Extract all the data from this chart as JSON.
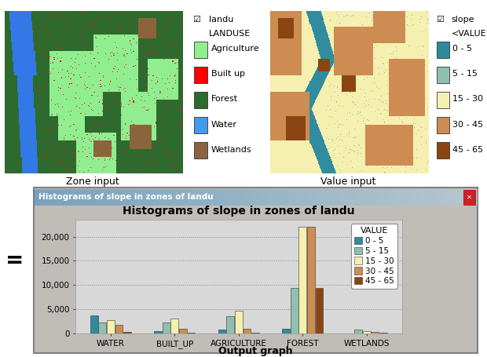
{
  "title": "Histograms of slope in zones of landu",
  "window_title": "Histograms of slope in zones of landu",
  "categories": [
    "WATER",
    "BUILT_UP",
    "AGRICULTURE",
    "FOREST",
    "WETLANDS"
  ],
  "value_labels": [
    "0 - 5",
    "5 - 15",
    "15 - 30",
    "30 - 45",
    "45 - 65"
  ],
  "bar_colors": [
    "#2e8b9a",
    "#8fbfb0",
    "#f5f0b0",
    "#cd8c52",
    "#8b4513"
  ],
  "data": {
    "WATER": [
      3800,
      2400,
      2800,
      1800,
      350
    ],
    "BUILT_UP": [
      550,
      2300,
      3100,
      1000,
      150
    ],
    "AGRICULTURE": [
      950,
      3700,
      4800,
      1000,
      200
    ],
    "FOREST": [
      1100,
      9500,
      22000,
      22000,
      9500
    ],
    "WETLANDS": [
      100,
      800,
      550,
      350,
      250
    ]
  },
  "yticks": [
    0,
    5000,
    10000,
    15000,
    20000
  ],
  "ytick_labels": [
    "0",
    "5,000",
    "10,000",
    "15,000",
    "20,000"
  ],
  "ylim": [
    0,
    23500
  ],
  "legend_title": "VALUE",
  "output_label": "Output graph",
  "zone_label": "Zone input",
  "value_label": "Value input",
  "landu_legend_title": "landu",
  "landu_legend_subtitle": "LANDUSE",
  "landu_items": [
    "Agriculture",
    "Built up",
    "Forest",
    "Water",
    "Wetlands"
  ],
  "landu_colors": [
    "#90ee90",
    "#ff0000",
    "#2d6a2d",
    "#4499ee",
    "#8b6340"
  ],
  "slope_legend_title": "slope",
  "slope_legend_subtitle": "<VALUE>",
  "slope_items": [
    "0 - 5",
    "5 - 15",
    "15 - 30",
    "30 - 45",
    "45 - 65"
  ],
  "slope_colors": [
    "#2e8b9a",
    "#8fbfb0",
    "#f5f0b0",
    "#cd8c52",
    "#8b4513"
  ],
  "win_bg_color": "#d4d0c8",
  "plot_bg_color": "#d8d8d8",
  "bar_width": 0.13
}
